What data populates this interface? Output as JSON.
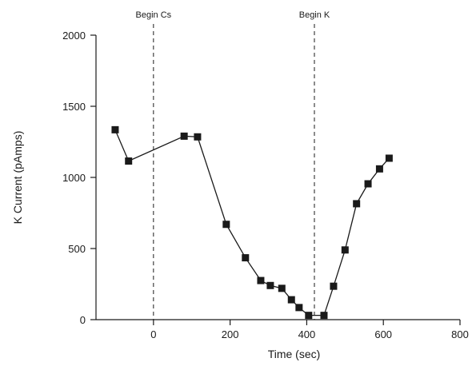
{
  "chart_data": {
    "type": "line",
    "xlabel": "Time (sec)",
    "ylabel": "K Current (pAmps)",
    "xlim": [
      -150,
      800
    ],
    "ylim": [
      0,
      2000
    ],
    "x_ticks": [
      0,
      200,
      400,
      600,
      800
    ],
    "y_ticks": [
      0,
      500,
      1000,
      1500,
      2000
    ],
    "x_tick_labels": [
      "0",
      "200",
      "400",
      "600",
      "800"
    ],
    "y_tick_labels": [
      "0",
      "500",
      "1000",
      "1500",
      "2000"
    ],
    "grid": false,
    "series": [
      {
        "marker": "square",
        "color": "#1a1a1a",
        "points": [
          {
            "x": -100,
            "y": 1335
          },
          {
            "x": -65,
            "y": 1115
          },
          {
            "x": 80,
            "y": 1290
          },
          {
            "x": 115,
            "y": 1285
          },
          {
            "x": 190,
            "y": 670
          },
          {
            "x": 240,
            "y": 435
          },
          {
            "x": 280,
            "y": 275
          },
          {
            "x": 305,
            "y": 240
          },
          {
            "x": 335,
            "y": 220
          },
          {
            "x": 360,
            "y": 140
          },
          {
            "x": 380,
            "y": 85
          },
          {
            "x": 405,
            "y": 30
          },
          {
            "x": 445,
            "y": 30
          },
          {
            "x": 470,
            "y": 235
          },
          {
            "x": 500,
            "y": 490
          },
          {
            "x": 530,
            "y": 815
          },
          {
            "x": 560,
            "y": 955
          },
          {
            "x": 590,
            "y": 1060
          },
          {
            "x": 615,
            "y": 1135
          }
        ]
      }
    ],
    "annotations": [
      {
        "x": 0,
        "label": "Begin Cs",
        "style": "dashed-vertical"
      },
      {
        "x": 420,
        "label": "Begin K",
        "style": "dashed-vertical"
      }
    ]
  }
}
